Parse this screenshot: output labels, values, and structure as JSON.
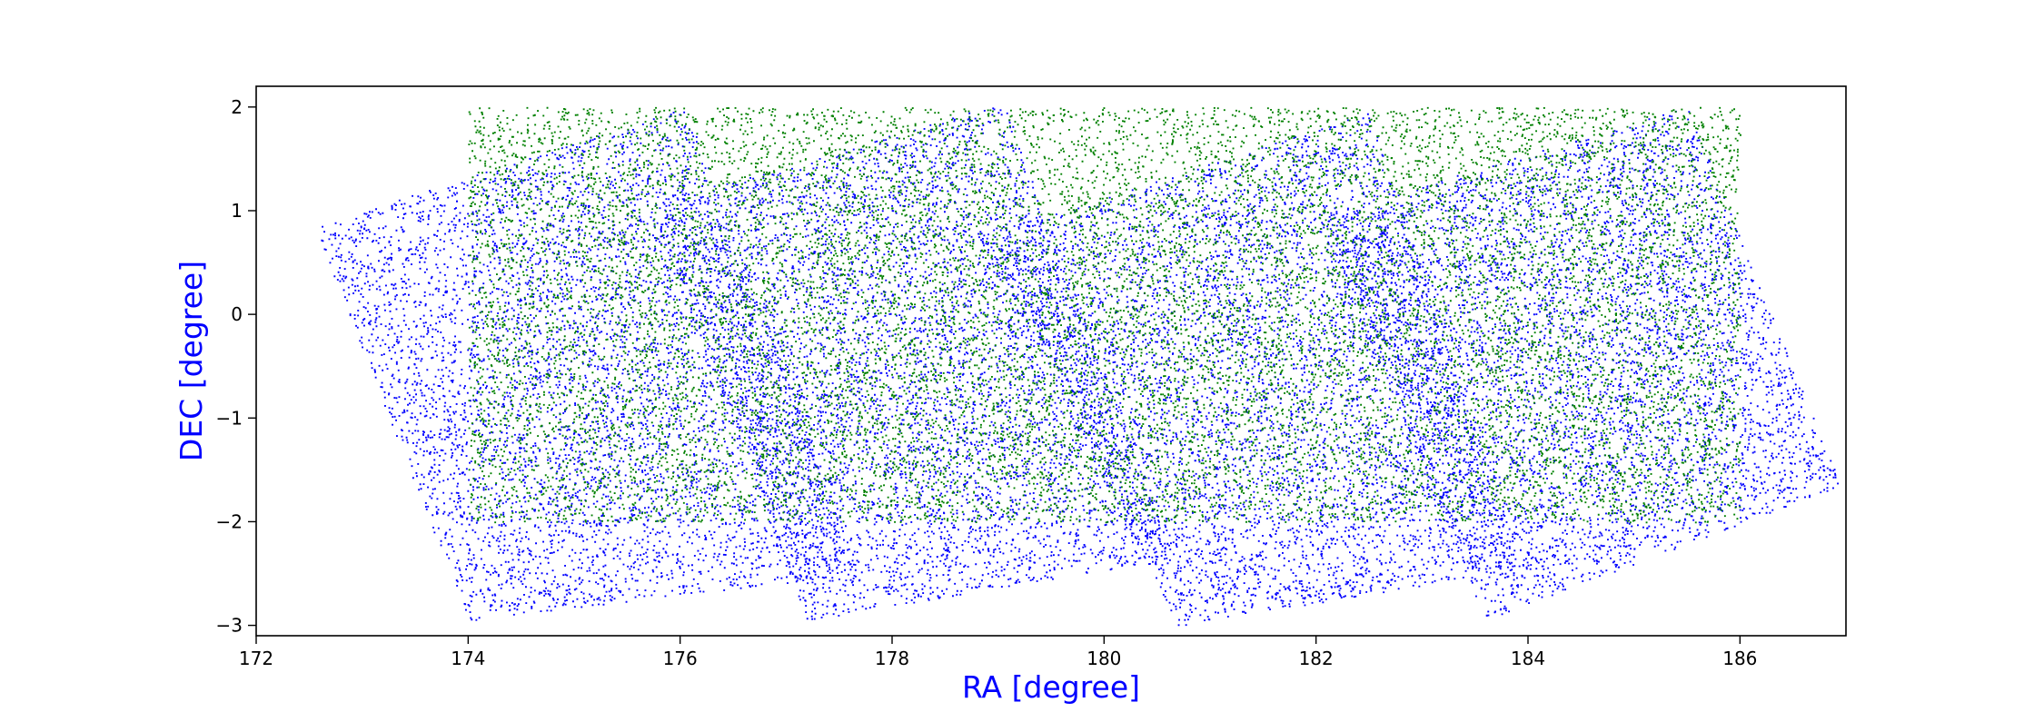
{
  "chart_data": {
    "type": "scatter",
    "title": "",
    "xlabel": "RA [degree]",
    "ylabel": "DEC [degree]",
    "label_color": "#0000ff",
    "xlim": [
      172,
      187
    ],
    "ylim": [
      -3.1,
      2.2
    ],
    "xticks": [
      172,
      174,
      176,
      178,
      180,
      182,
      184,
      186
    ],
    "yticks": [
      -3,
      -2,
      -1,
      0,
      1,
      2
    ],
    "grid": false,
    "legend": "none",
    "series": [
      {
        "color": "#0000ff",
        "marker": "point",
        "approx_points": 20000,
        "regions": [
          {
            "shape": "rotated-rectangle",
            "corners": [
              [
                172.55,
                0.85
              ],
              [
                176.05,
                2.0
              ],
              [
                177.7,
                -2.5
              ],
              [
                174.0,
                -2.95
              ]
            ]
          },
          {
            "shape": "rotated-rectangle",
            "corners": [
              [
                175.7,
                1.05
              ],
              [
                179.05,
                2.05
              ],
              [
                180.65,
                -2.35
              ],
              [
                177.2,
                -2.95
              ]
            ]
          },
          {
            "shape": "rotated-rectangle",
            "corners": [
              [
                178.8,
                0.75
              ],
              [
                182.5,
                1.95
              ],
              [
                183.95,
                -2.45
              ],
              [
                180.7,
                -3.0
              ]
            ]
          },
          {
            "shape": "rotated-rectangle",
            "corners": [
              [
                182.0,
                0.95
              ],
              [
                185.5,
                2.0
              ],
              [
                186.95,
                -1.65
              ],
              [
                183.6,
                -2.95
              ]
            ]
          }
        ]
      },
      {
        "color": "#008000",
        "marker": "point",
        "approx_points": 15000,
        "regions": [
          {
            "shape": "rectangle",
            "ra_range": [
              174.0,
              186.0
            ],
            "dec_range": [
              -2.0,
              2.0
            ]
          }
        ]
      }
    ]
  }
}
